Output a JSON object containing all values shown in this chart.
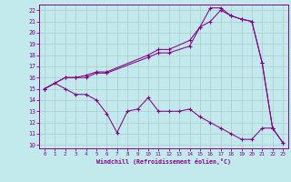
{
  "xlabel": "Windchill (Refroidissement éolien,°C)",
  "xlim_min": -0.5,
  "xlim_max": 23.5,
  "ylim_min": 9.7,
  "ylim_max": 22.5,
  "xticks": [
    0,
    1,
    2,
    3,
    4,
    5,
    6,
    7,
    8,
    9,
    10,
    11,
    12,
    13,
    14,
    15,
    16,
    17,
    18,
    19,
    20,
    21,
    22,
    23
  ],
  "yticks": [
    10,
    11,
    12,
    13,
    14,
    15,
    16,
    17,
    18,
    19,
    20,
    21,
    22
  ],
  "bg_color": "#c2eaec",
  "line_color": "#880088",
  "grid_color": "#aacccc",
  "line1_x": [
    0,
    1,
    2,
    3,
    4,
    5,
    6,
    7,
    8,
    9,
    10,
    11,
    12,
    13,
    14,
    15,
    16,
    17,
    18,
    19,
    20,
    21,
    22,
    23
  ],
  "line1_y": [
    15.0,
    15.5,
    15.0,
    14.5,
    14.5,
    14.0,
    12.8,
    11.1,
    13.0,
    13.2,
    14.2,
    13.0,
    13.0,
    13.0,
    13.2,
    12.5,
    12.0,
    11.5,
    11.0,
    10.5,
    10.5,
    11.5,
    11.5,
    10.2
  ],
  "line2_x": [
    0,
    2,
    3,
    4,
    5,
    6,
    10,
    11,
    12,
    14,
    15,
    16,
    17,
    18,
    19,
    20,
    21,
    22,
    23
  ],
  "line2_y": [
    15.0,
    16.0,
    16.0,
    16.2,
    16.5,
    16.5,
    18.0,
    18.5,
    18.5,
    19.3,
    20.5,
    21.0,
    22.0,
    21.5,
    21.2,
    21.0,
    17.3,
    11.5,
    10.2
  ],
  "line3_x": [
    0,
    2,
    3,
    4,
    5,
    6,
    10,
    11,
    12,
    14,
    15,
    16,
    17,
    18,
    19,
    20,
    21,
    22
  ],
  "line3_y": [
    15.0,
    16.0,
    16.0,
    16.0,
    16.4,
    16.4,
    17.8,
    18.2,
    18.2,
    18.8,
    20.5,
    22.2,
    22.2,
    21.5,
    21.2,
    21.0,
    17.3,
    11.5
  ]
}
